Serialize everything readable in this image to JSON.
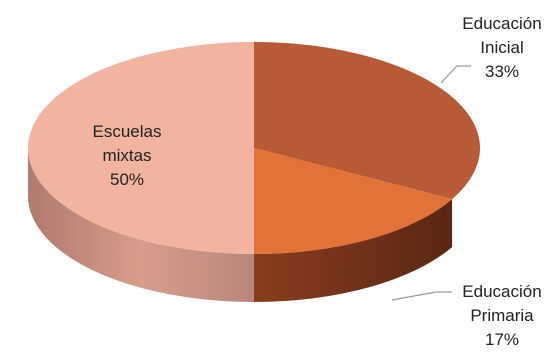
{
  "chart_data": {
    "type": "pie",
    "style": "3d",
    "legend": "none",
    "slices": [
      {
        "label_lines": [
          "Escuelas",
          "mixtas"
        ],
        "percent_label": "50%",
        "value": 50,
        "color": "#F2B3A0",
        "side_color": "#C8877A"
      },
      {
        "label_lines": [
          "Educación",
          "Inicial"
        ],
        "percent_label": "33%",
        "value": 33,
        "color": "#B85A35",
        "side_color": "#7E3A22"
      },
      {
        "label_lines": [
          "Educación",
          "Primaria"
        ],
        "percent_label": "17%",
        "value": 17,
        "color": "#E37238",
        "side_color": "#A84A20"
      }
    ]
  }
}
